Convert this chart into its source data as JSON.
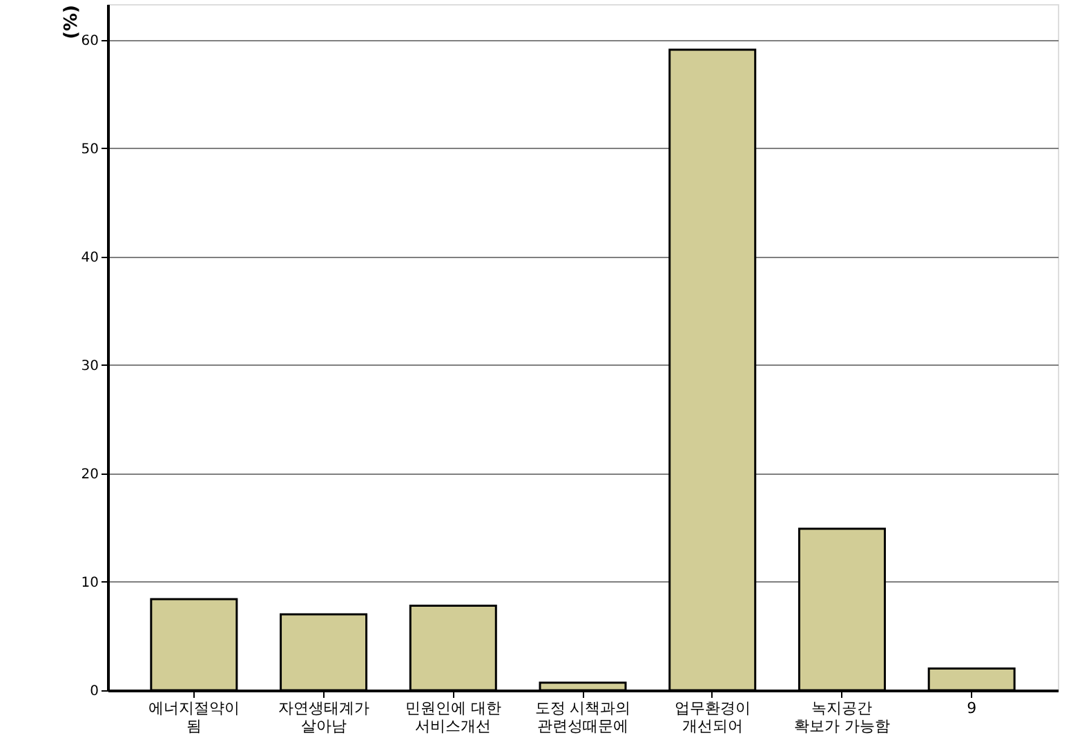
{
  "chart_data": {
    "type": "bar",
    "ylabel": "(%)",
    "categories": [
      "에너지절약이\n됨",
      "자연생태계가\n살아남",
      "민원인에 대한\n서비스개선",
      "도정 시책과의\n관련성때문에",
      "업무환경이\n개선되어",
      "녹지공간\n확보가 가능함",
      "9"
    ],
    "values": [
      8.4,
      7.0,
      7.8,
      0.7,
      59.1,
      14.9,
      2.0
    ],
    "color": "#d2cd96",
    "ylim": [
      0,
      63.3
    ],
    "yticks": [
      0,
      10,
      20,
      30,
      40,
      50,
      60
    ],
    "grid": "y"
  }
}
